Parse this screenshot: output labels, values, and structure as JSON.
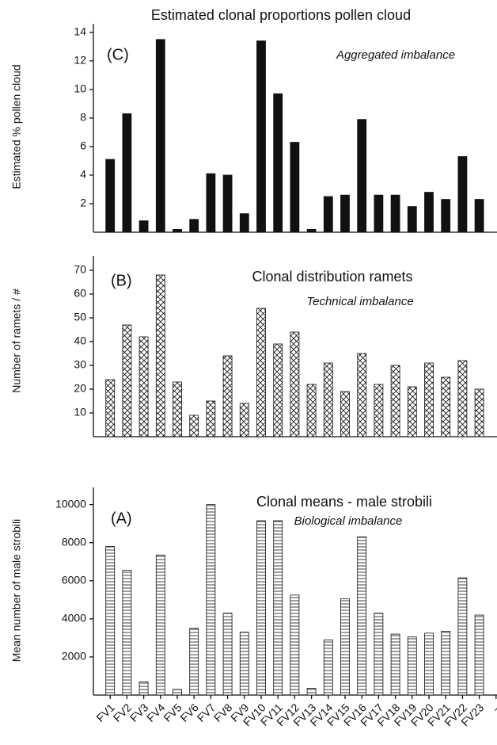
{
  "chart_data": [
    {
      "type": "bar",
      "title": "Estimated clonal proportions pollen cloud",
      "panel_label": "(C)",
      "annotation": "Aggregated imbalance",
      "ylabel": "Estimated % pollen cloud",
      "hatch": "solid",
      "color": "#111111",
      "values": [
        5.1,
        8.3,
        0.8,
        13.5,
        0.2,
        0.9,
        4.1,
        4.0,
        1.3,
        13.4,
        9.7,
        6.3,
        0.2,
        2.5,
        2.6,
        7.9,
        2.6,
        2.6,
        1.8,
        2.8,
        2.3,
        5.3,
        2.3,
        null
      ],
      "ylim": [
        0,
        14.6
      ],
      "yticks": [
        2,
        4,
        6,
        8,
        10,
        12,
        14
      ]
    },
    {
      "type": "bar",
      "title": "Clonal distribution ramets",
      "panel_label": "(B)",
      "annotation": "Technical imbalance",
      "ylabel": "Number of ramets / #",
      "hatch": "cross",
      "color": "#111111",
      "values": [
        24,
        47,
        42,
        68,
        23,
        9,
        15,
        34,
        14,
        54,
        39,
        44,
        22,
        31,
        19,
        35,
        22,
        30,
        21,
        31,
        25,
        32,
        20,
        null
      ],
      "ylim": [
        0,
        76
      ],
      "yticks": [
        10,
        20,
        30,
        40,
        50,
        60,
        70
      ]
    },
    {
      "type": "bar",
      "title": "Clonal means - male strobili",
      "panel_label": "(A)",
      "annotation": "Biological imbalance",
      "ylabel": "Mean number of male strobili",
      "hatch": "horizontal",
      "color": "#111111",
      "categories": [
        "FV1",
        "FV2",
        "FV3",
        "FV4",
        "FV5",
        "FV6",
        "FV7",
        "FV8",
        "FV9",
        "FV10",
        "FV11",
        "FV12",
        "FV13",
        "FV14",
        "FV15",
        "FV16",
        "FV17",
        "FV18",
        "FV19",
        "FV20",
        "FV21",
        "FV22",
        "FV23",
        "–"
      ],
      "values": [
        7800,
        6550,
        700,
        7350,
        300,
        3500,
        10000,
        4300,
        3300,
        9150,
        9150,
        5250,
        350,
        2900,
        5050,
        8300,
        4300,
        3200,
        3050,
        3250,
        3350,
        6150,
        4200,
        null
      ],
      "ylim": [
        0,
        10900
      ],
      "yticks": [
        2000,
        4000,
        6000,
        8000,
        10000
      ]
    }
  ]
}
